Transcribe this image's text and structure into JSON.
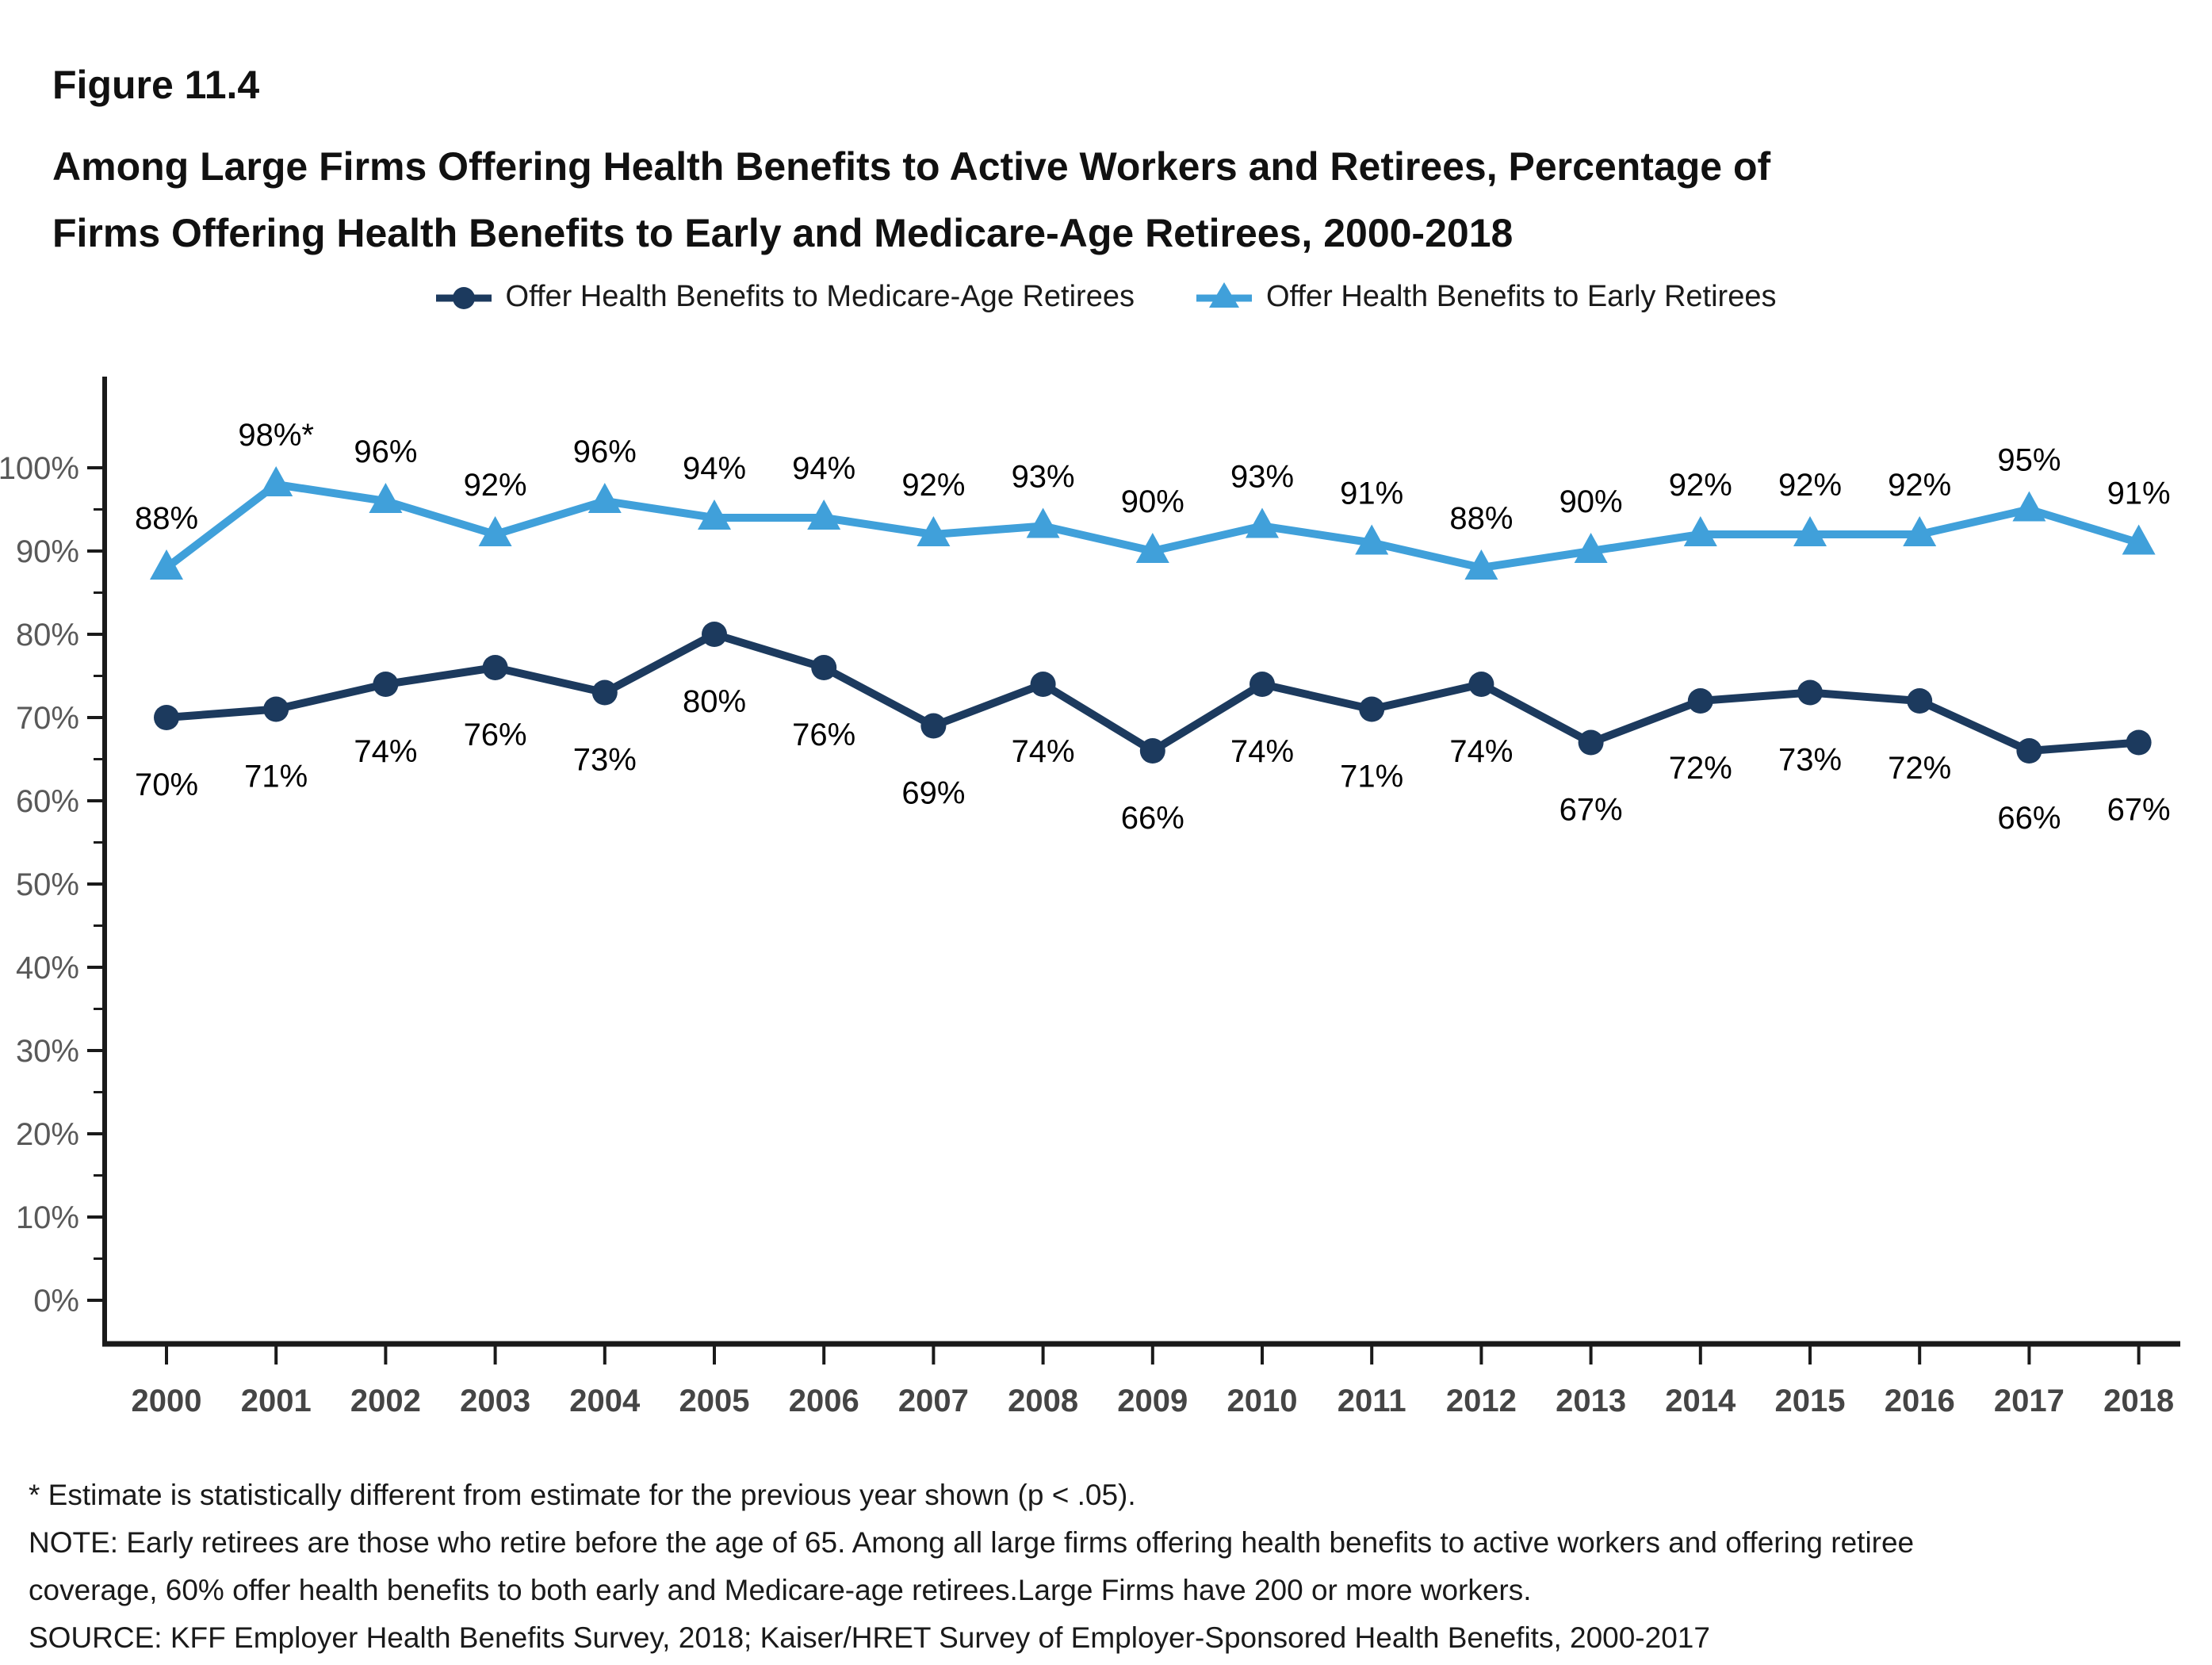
{
  "figure_label": "Figure 11.4",
  "title_lines": [
    "Among Large Firms Offering Health Benefits to Active Workers and Retirees, Percentage of",
    "Firms Offering Health Benefits to Early and Medicare-Age Retirees, 2000-2018"
  ],
  "colors": {
    "medicare_series": "#1c3a5e",
    "early_series": "#40a0da",
    "axis": "#1a1a1a",
    "y_tick_label": "#595959",
    "x_tick_label": "#454545",
    "data_label": "#000000"
  },
  "chart_data": {
    "type": "line",
    "categories": [
      "2000",
      "2001",
      "2002",
      "2003",
      "2004",
      "2005",
      "2006",
      "2007",
      "2008",
      "2009",
      "2010",
      "2011",
      "2012",
      "2013",
      "2014",
      "2015",
      "2016",
      "2017",
      "2018"
    ],
    "series": [
      {
        "name": "Offer Health Benefits to Medicare-Age Retirees",
        "marker": "circle",
        "color": "#1c3a5e",
        "label_position": "below",
        "values": [
          70,
          71,
          74,
          76,
          73,
          80,
          76,
          69,
          74,
          66,
          74,
          71,
          74,
          67,
          72,
          73,
          72,
          66,
          67
        ],
        "labels": [
          "70%",
          "71%",
          "74%",
          "76%",
          "73%",
          "80%",
          "76%",
          "69%",
          "74%",
          "66%",
          "74%",
          "71%",
          "74%",
          "67%",
          "72%",
          "73%",
          "72%",
          "66%",
          "67%"
        ]
      },
      {
        "name": "Offer Health Benefits to Early Retirees",
        "marker": "triangle",
        "color": "#40a0da",
        "label_position": "above",
        "values": [
          88,
          98,
          96,
          92,
          96,
          94,
          94,
          92,
          93,
          90,
          93,
          91,
          88,
          90,
          92,
          92,
          92,
          95,
          91
        ],
        "labels": [
          "88%",
          "98%*",
          "96%",
          "92%",
          "96%",
          "94%",
          "94%",
          "92%",
          "93%",
          "90%",
          "93%",
          "91%",
          "88%",
          "90%",
          "92%",
          "92%",
          "92%",
          "95%",
          "91%"
        ]
      }
    ],
    "ylim": [
      0,
      100
    ],
    "y_tick_step": 10,
    "y_tick_labels": [
      "0%",
      "10%",
      "20%",
      "30%",
      "40%",
      "50%",
      "60%",
      "70%",
      "80%",
      "90%",
      "100%"
    ],
    "grid": false,
    "legend_position": "top-center"
  },
  "footnotes": [
    "* Estimate is statistically different from estimate for the previous year shown (p < .05).",
    "NOTE: Early retirees are those who retire before the age of 65. Among all large firms offering health benefits to active workers and offering retiree",
    "coverage, 60% offer health benefits to both early and Medicare-age retirees.Large Firms have 200 or more workers.",
    "SOURCE: KFF Employer Health Benefits Survey, 2018; Kaiser/HRET Survey of Employer-Sponsored Health Benefits, 2000-2017"
  ]
}
